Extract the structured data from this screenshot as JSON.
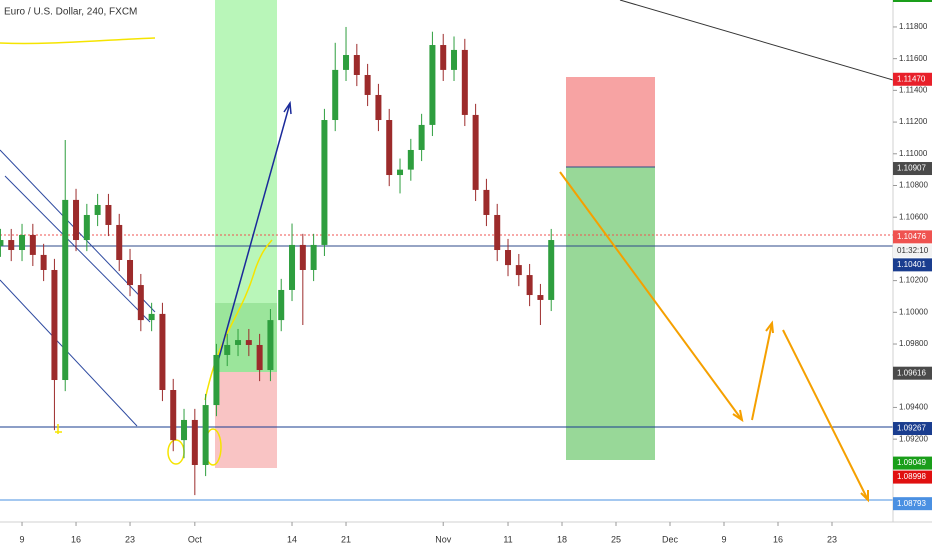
{
  "chart_data": {
    "type": "candlestick",
    "title": "Euro / U.S. Dollar, 240, FXCM",
    "x": [
      -2,
      -1,
      0,
      1,
      2,
      3,
      4,
      5,
      6,
      7,
      8,
      9,
      10,
      11,
      12,
      13,
      14,
      15,
      16,
      17,
      18,
      19,
      20,
      21,
      22,
      23,
      24,
      25,
      26,
      27,
      28,
      29,
      30,
      31,
      32,
      33,
      34,
      35,
      36,
      37,
      38,
      39,
      40,
      41,
      42,
      43,
      44,
      45,
      46,
      47,
      48,
      49
    ],
    "open": [
      1.1042,
      1.10456,
      1.10393,
      1.10488,
      1.10362,
      1.10267,
      1.09573,
      1.10709,
      1.10456,
      1.10614,
      1.10677,
      1.10551,
      1.1033,
      1.10172,
      1.09951,
      1.0999,
      1.0951,
      1.09194,
      1.09321,
      1.09037,
      1.09415,
      1.09731,
      1.09794,
      1.09825,
      1.09794,
      1.09636,
      1.09951,
      1.10141,
      1.10425,
      1.10267,
      1.10425,
      1.11213,
      1.11529,
      1.11623,
      1.11497,
      1.11371,
      1.11213,
      1.10866,
      1.109,
      1.11024,
      1.11182,
      1.11686,
      1.11529,
      1.11655,
      1.11245,
      1.10772,
      1.10614,
      1.10393,
      1.10298,
      1.10235,
      1.10109,
      1.10078
    ],
    "high": [
      1.10526,
      1.10526,
      1.10558,
      1.10558,
      1.10432,
      1.10337,
      1.11087,
      1.10779,
      1.10684,
      1.10747,
      1.10747,
      1.10621,
      1.104,
      1.10242,
      1.1006,
      1.1006,
      1.0958,
      1.09391,
      1.09391,
      1.09485,
      1.09801,
      1.09864,
      1.09895,
      1.09895,
      1.09864,
      1.10021,
      1.10211,
      1.1056,
      1.10495,
      1.10495,
      1.11283,
      1.117,
      1.118,
      1.11693,
      1.11567,
      1.11441,
      1.11283,
      1.1097,
      1.11094,
      1.11252,
      1.1177,
      1.11756,
      1.1174,
      1.11725,
      1.11315,
      1.10842,
      1.10684,
      1.10463,
      1.10368,
      1.10305,
      1.10179,
      1.10526
    ],
    "low": [
      1.1035,
      1.10323,
      1.10323,
      1.10292,
      1.10197,
      1.09257,
      1.09503,
      1.10386,
      1.10386,
      1.10544,
      1.10481,
      1.1026,
      1.10102,
      1.09881,
      1.09881,
      1.0944,
      1.09124,
      1.0908,
      1.08847,
      1.08967,
      1.09345,
      1.09661,
      1.09724,
      1.09724,
      1.09566,
      1.09566,
      1.09881,
      1.10071,
      1.0992,
      1.10197,
      1.10355,
      1.11143,
      1.11459,
      1.11427,
      1.11301,
      1.11143,
      1.10796,
      1.1075,
      1.1083,
      1.10954,
      1.11112,
      1.11459,
      1.11459,
      1.11175,
      1.10702,
      1.10544,
      1.10323,
      1.10228,
      1.10165,
      1.10039,
      1.0992,
      1.10008
    ],
    "close": [
      1.10456,
      1.10393,
      1.10488,
      1.10362,
      1.10267,
      1.09573,
      1.10709,
      1.10456,
      1.10614,
      1.10677,
      1.10551,
      1.1033,
      1.10172,
      1.09951,
      1.0999,
      1.0951,
      1.09194,
      1.09321,
      1.09037,
      1.09415,
      1.09731,
      1.09794,
      1.09825,
      1.09794,
      1.09636,
      1.09951,
      1.10141,
      1.10425,
      1.10267,
      1.10425,
      1.11213,
      1.11529,
      1.11623,
      1.11497,
      1.11371,
      1.11213,
      1.10866,
      1.109,
      1.11024,
      1.11182,
      1.11686,
      1.11529,
      1.11655,
      1.11245,
      1.10772,
      1.10614,
      1.10393,
      1.10298,
      1.10235,
      1.10109,
      1.10078,
      1.10456
    ],
    "up_color": "#2e9e3e",
    "down_color": "#9c2b2b",
    "xlim": [
      -2.04,
      80.37
    ],
    "ylim": [
      1.0869,
      1.1197
    ],
    "xticks": [
      {
        "value": 0,
        "label": "9"
      },
      {
        "value": 5,
        "label": "16"
      },
      {
        "value": 10,
        "label": "23"
      },
      {
        "value": 16,
        "label": "Oct"
      },
      {
        "value": 25,
        "label": "14"
      },
      {
        "value": 30,
        "label": "21"
      },
      {
        "value": 39,
        "label": "Nov"
      },
      {
        "value": 45,
        "label": "11"
      },
      {
        "value": 50,
        "label": "18"
      },
      {
        "value": 55,
        "label": "25"
      },
      {
        "value": 60,
        "label": "Dec"
      },
      {
        "value": 65,
        "label": "9"
      },
      {
        "value": 70,
        "label": "16"
      },
      {
        "value": 75,
        "label": "23"
      }
    ],
    "yticks": [
      {
        "value": 1.118,
        "label": "1.11800"
      },
      {
        "value": 1.116,
        "label": "1.11600"
      },
      {
        "value": 1.114,
        "label": "1.11400"
      },
      {
        "value": 1.112,
        "label": "1.11200"
      },
      {
        "value": 1.11,
        "label": "1.11000"
      },
      {
        "value": 1.108,
        "label": "1.10800"
      },
      {
        "value": 1.106,
        "label": "1.10600"
      },
      {
        "value": 1.102,
        "label": "1.10200"
      },
      {
        "value": 1.1,
        "label": "1.10000"
      },
      {
        "value": 1.098,
        "label": "1.09800"
      },
      {
        "value": 1.094,
        "label": "1.09400"
      },
      {
        "value": 1.092,
        "label": "1.09200"
      }
    ],
    "price_labels": [
      {
        "value": 1.1147,
        "label": "1.11470",
        "color": "#e8202a"
      },
      {
        "value": 1.10907,
        "label": "1.10907",
        "color": "#4a4a4a"
      },
      {
        "value": 1.10476,
        "label": "1.10476",
        "color": "#ef5350"
      },
      {
        "value": 1.10401,
        "label": "1.10401",
        "color": "#1a3d8f"
      },
      {
        "value": 1.09616,
        "label": "1.09616",
        "color": "#4a4a4a"
      },
      {
        "value": 1.09267,
        "label": "1.09267",
        "color": "#1a3d8f"
      },
      {
        "value": 1.09049,
        "label": "1.09049",
        "color": "#1a9e1a"
      },
      {
        "value": 1.08998,
        "label": "1.08998",
        "color": "#e01010"
      },
      {
        "value": 1.08793,
        "label": "1.08793",
        "color": "#4a90e2"
      }
    ],
    "countdown": "01:32:10"
  }
}
